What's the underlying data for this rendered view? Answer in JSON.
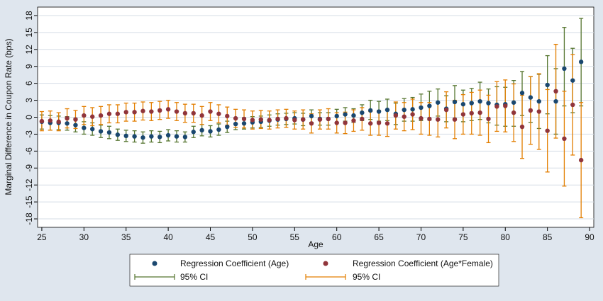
{
  "chart_data": {
    "type": "scatter",
    "xlabel": "Age",
    "ylabel": "Marginal Difference in Coupon Rate (bps)",
    "xlim": [
      24.5,
      90.5
    ],
    "ylim": [
      -19.5,
      19.5
    ],
    "xticks": [
      25,
      30,
      35,
      40,
      45,
      50,
      55,
      60,
      65,
      70,
      75,
      80,
      85,
      90
    ],
    "yticks": [
      18,
      15,
      12,
      9,
      6,
      3,
      0,
      -3,
      -6,
      -9,
      -12,
      -15,
      -18
    ],
    "grid": true,
    "legend_position": "bottom",
    "legend": [
      "Regression Coefficient (Age)",
      "Regression Coefficient (Age*Female)",
      "95% CI",
      "95% CI"
    ],
    "colors": {
      "age_point": "#1a476f",
      "female_point": "#90353b",
      "age_ci": "#55752f",
      "female_ci": "#e37e00",
      "background": "#dfe6ee",
      "plot_bg": "#ffffff",
      "grid": "#d5dde6"
    },
    "series": [
      {
        "name": "Regression Coefficient (Age)",
        "ci_name": "95% CI",
        "x": [
          25,
          26,
          27,
          28,
          29,
          30,
          31,
          32,
          33,
          34,
          35,
          36,
          37,
          38,
          39,
          40,
          41,
          42,
          43,
          44,
          45,
          46,
          47,
          48,
          49,
          50,
          51,
          52,
          53,
          54,
          55,
          56,
          57,
          58,
          59,
          60,
          61,
          62,
          63,
          64,
          65,
          66,
          67,
          68,
          69,
          70,
          71,
          72,
          73,
          74,
          75,
          76,
          77,
          78,
          79,
          80,
          81,
          82,
          83,
          84,
          85,
          86,
          87,
          88,
          89
        ],
        "y": [
          -0.8,
          -1.0,
          -1.0,
          -1.1,
          -1.4,
          -1.9,
          -2.1,
          -2.5,
          -2.7,
          -3.1,
          -3.3,
          -3.4,
          -3.6,
          -3.4,
          -3.5,
          -3.2,
          -3.4,
          -3.5,
          -2.6,
          -2.3,
          -2.5,
          -2.2,
          -1.7,
          -1.2,
          -1.1,
          -0.9,
          -0.8,
          -0.6,
          -0.4,
          -0.3,
          -0.2,
          -0.4,
          0.2,
          -0.3,
          -0.3,
          0.2,
          0.5,
          0.3,
          0.8,
          1.2,
          1.0,
          1.3,
          0.6,
          1.3,
          1.4,
          1.7,
          2.0,
          2.6,
          1.5,
          2.7,
          2.3,
          2.5,
          2.8,
          2.5,
          2.2,
          2.3,
          2.6,
          4.3,
          3.5,
          2.8,
          5.7,
          2.8,
          8.6,
          6.5,
          9.8
        ],
        "lo": [
          -2.1,
          -2.3,
          -2.2,
          -2.3,
          -2.6,
          -3.0,
          -3.2,
          -3.6,
          -3.8,
          -4.1,
          -4.3,
          -4.4,
          -4.6,
          -4.4,
          -4.5,
          -4.2,
          -4.4,
          -4.4,
          -3.6,
          -3.3,
          -3.5,
          -3.2,
          -2.7,
          -2.2,
          -2.1,
          -1.9,
          -1.8,
          -1.6,
          -1.4,
          -1.3,
          -1.2,
          -1.5,
          -0.9,
          -1.4,
          -1.4,
          -1.0,
          -0.7,
          -0.9,
          -0.6,
          -0.4,
          -0.7,
          -0.6,
          -1.3,
          -0.7,
          -0.7,
          -0.6,
          -0.5,
          0.2,
          -0.8,
          -0.2,
          -0.8,
          -0.6,
          -0.4,
          -1.0,
          -1.4,
          -1.6,
          -1.6,
          0.3,
          -0.9,
          -2.0,
          0.6,
          -3.0,
          2.0,
          0.8,
          2.0
        ],
        "hi": [
          0.4,
          0.3,
          0.2,
          0.1,
          -0.2,
          -0.8,
          -1.0,
          -1.4,
          -1.6,
          -2.1,
          -2.3,
          -2.4,
          -2.6,
          -2.4,
          -2.5,
          -2.2,
          -2.4,
          -2.6,
          -1.6,
          -1.3,
          -1.5,
          -1.2,
          -0.7,
          -0.2,
          -0.1,
          0.1,
          0.2,
          0.4,
          0.6,
          0.7,
          0.8,
          0.7,
          1.3,
          0.8,
          0.8,
          1.4,
          1.7,
          1.5,
          2.2,
          3.0,
          2.8,
          3.2,
          2.5,
          3.3,
          3.5,
          4.1,
          4.6,
          5.0,
          3.8,
          5.6,
          4.8,
          5.1,
          6.2,
          5.0,
          5.4,
          5.3,
          6.5,
          8.1,
          7.2,
          7.6,
          10.9,
          8.6,
          15.9,
          12.2,
          17.5
        ]
      },
      {
        "name": "Regression Coefficient (Age*Female)",
        "ci_name": "95% CI",
        "x": [
          25,
          26,
          27,
          28,
          29,
          30,
          31,
          32,
          33,
          34,
          35,
          36,
          37,
          38,
          39,
          40,
          41,
          42,
          43,
          44,
          45,
          46,
          47,
          48,
          49,
          50,
          51,
          52,
          53,
          54,
          55,
          56,
          57,
          58,
          59,
          60,
          61,
          62,
          63,
          64,
          65,
          66,
          67,
          68,
          69,
          70,
          71,
          72,
          73,
          74,
          75,
          76,
          77,
          78,
          79,
          80,
          81,
          82,
          83,
          84,
          85,
          86,
          87,
          88,
          89
        ],
        "y": [
          -0.7,
          -0.6,
          -0.8,
          -0.2,
          -0.4,
          0.3,
          0.1,
          0.3,
          0.6,
          0.6,
          0.9,
          0.9,
          1.1,
          1.0,
          1.2,
          1.4,
          1.0,
          0.7,
          0.7,
          0.3,
          1.0,
          0.6,
          0.2,
          -0.2,
          -0.3,
          -0.5,
          -0.4,
          -0.5,
          -0.3,
          -0.2,
          -0.5,
          -0.4,
          -1.1,
          -0.4,
          -0.3,
          -1.0,
          -1.0,
          -0.6,
          -0.3,
          -1.1,
          -1.0,
          -1.1,
          0.3,
          0.1,
          0.5,
          -0.2,
          -0.3,
          -0.4,
          1.3,
          -0.4,
          0.5,
          0.7,
          0.8,
          -0.3,
          1.9,
          2.0,
          0.8,
          -1.7,
          1.2,
          1.0,
          -2.4,
          4.6,
          -3.8,
          2.2,
          -7.6
        ],
        "lo": [
          -2.4,
          -2.3,
          -2.4,
          -1.9,
          -2.0,
          -1.3,
          -1.5,
          -1.3,
          -1.0,
          -1.0,
          -0.7,
          -0.7,
          -0.5,
          -0.6,
          -0.4,
          -0.2,
          -0.6,
          -0.9,
          -0.9,
          -1.3,
          -0.6,
          -1.0,
          -1.4,
          -1.8,
          -1.9,
          -2.1,
          -2.0,
          -2.1,
          -1.9,
          -1.8,
          -2.1,
          -2.1,
          -2.8,
          -2.1,
          -2.1,
          -2.8,
          -2.9,
          -2.5,
          -2.3,
          -3.2,
          -3.2,
          -3.4,
          -2.1,
          -2.4,
          -2.2,
          -3.0,
          -3.2,
          -3.5,
          -1.9,
          -3.8,
          -3.0,
          -3.0,
          -3.2,
          -4.5,
          -2.5,
          -2.6,
          -4.3,
          -7.3,
          -4.8,
          -5.7,
          -9.7,
          -3.7,
          -12.2,
          -6.7,
          -17.8
        ],
        "hi": [
          1.0,
          1.1,
          0.8,
          1.5,
          1.2,
          1.9,
          1.7,
          1.9,
          2.2,
          2.2,
          2.5,
          2.5,
          2.7,
          2.6,
          2.8,
          3.0,
          2.6,
          2.3,
          2.3,
          1.9,
          2.6,
          2.2,
          1.8,
          1.4,
          1.3,
          1.1,
          1.2,
          1.1,
          1.3,
          1.4,
          1.1,
          1.3,
          0.6,
          1.3,
          1.5,
          0.8,
          0.9,
          1.3,
          1.7,
          1.0,
          1.2,
          1.2,
          2.7,
          2.6,
          3.2,
          2.6,
          2.6,
          2.7,
          4.5,
          3.0,
          4.0,
          4.4,
          4.8,
          3.9,
          6.3,
          6.6,
          5.9,
          3.9,
          7.2,
          7.7,
          4.9,
          12.9,
          4.6,
          11.1,
          2.6
        ]
      }
    ]
  }
}
